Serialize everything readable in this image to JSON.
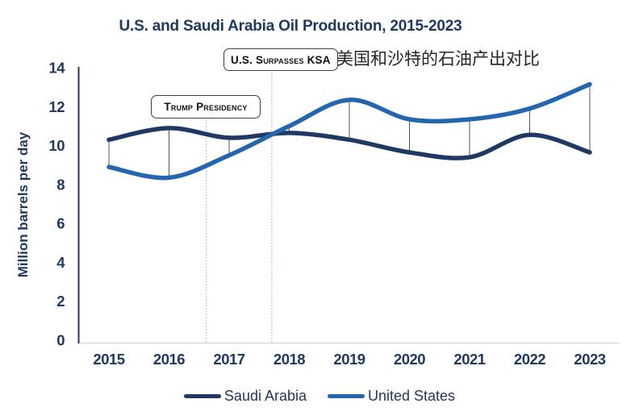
{
  "chart_data": {
    "type": "line",
    "title": "U.S. and Saudi Arabia Oil Production, 2015-2023",
    "ylabel": "Million barrels per day",
    "x": [
      2015,
      2016,
      2017,
      2018,
      2019,
      2020,
      2021,
      2022,
      2023
    ],
    "ylim": [
      0,
      14
    ],
    "yticks": [
      0,
      2,
      4,
      6,
      8,
      10,
      12,
      14
    ],
    "grid": false,
    "smooth": true,
    "legend_position": "bottom",
    "series": [
      {
        "name": "Saudi Arabia",
        "color": "#1F3864",
        "values": [
          10.3,
          10.9,
          10.4,
          10.65,
          10.3,
          9.65,
          9.4,
          10.55,
          9.65
        ]
      },
      {
        "name": "United States",
        "color": "#2366AE",
        "values": [
          8.9,
          8.35,
          9.5,
          11.0,
          12.35,
          11.35,
          11.35,
          11.9,
          13.15
        ]
      }
    ],
    "connectors": {
      "style": "vertical-line-between-series-at-each-year",
      "color": "#555555"
    },
    "annotations": [
      {
        "label": "Trump Presidency",
        "at_year": 2016.62,
        "line_style": "dotted"
      },
      {
        "label": "U.S. Surpasses KSA",
        "at_year": 2017.71,
        "line_style": "dotted"
      }
    ]
  },
  "side_label": "美国和沙特的石油产出对比",
  "colors": {
    "axis_text": "#1F3864",
    "axis_line": "#24385C",
    "baseline": "#D9D9D9",
    "annotation_line": "#9FB3D6",
    "connector": "#555555"
  }
}
